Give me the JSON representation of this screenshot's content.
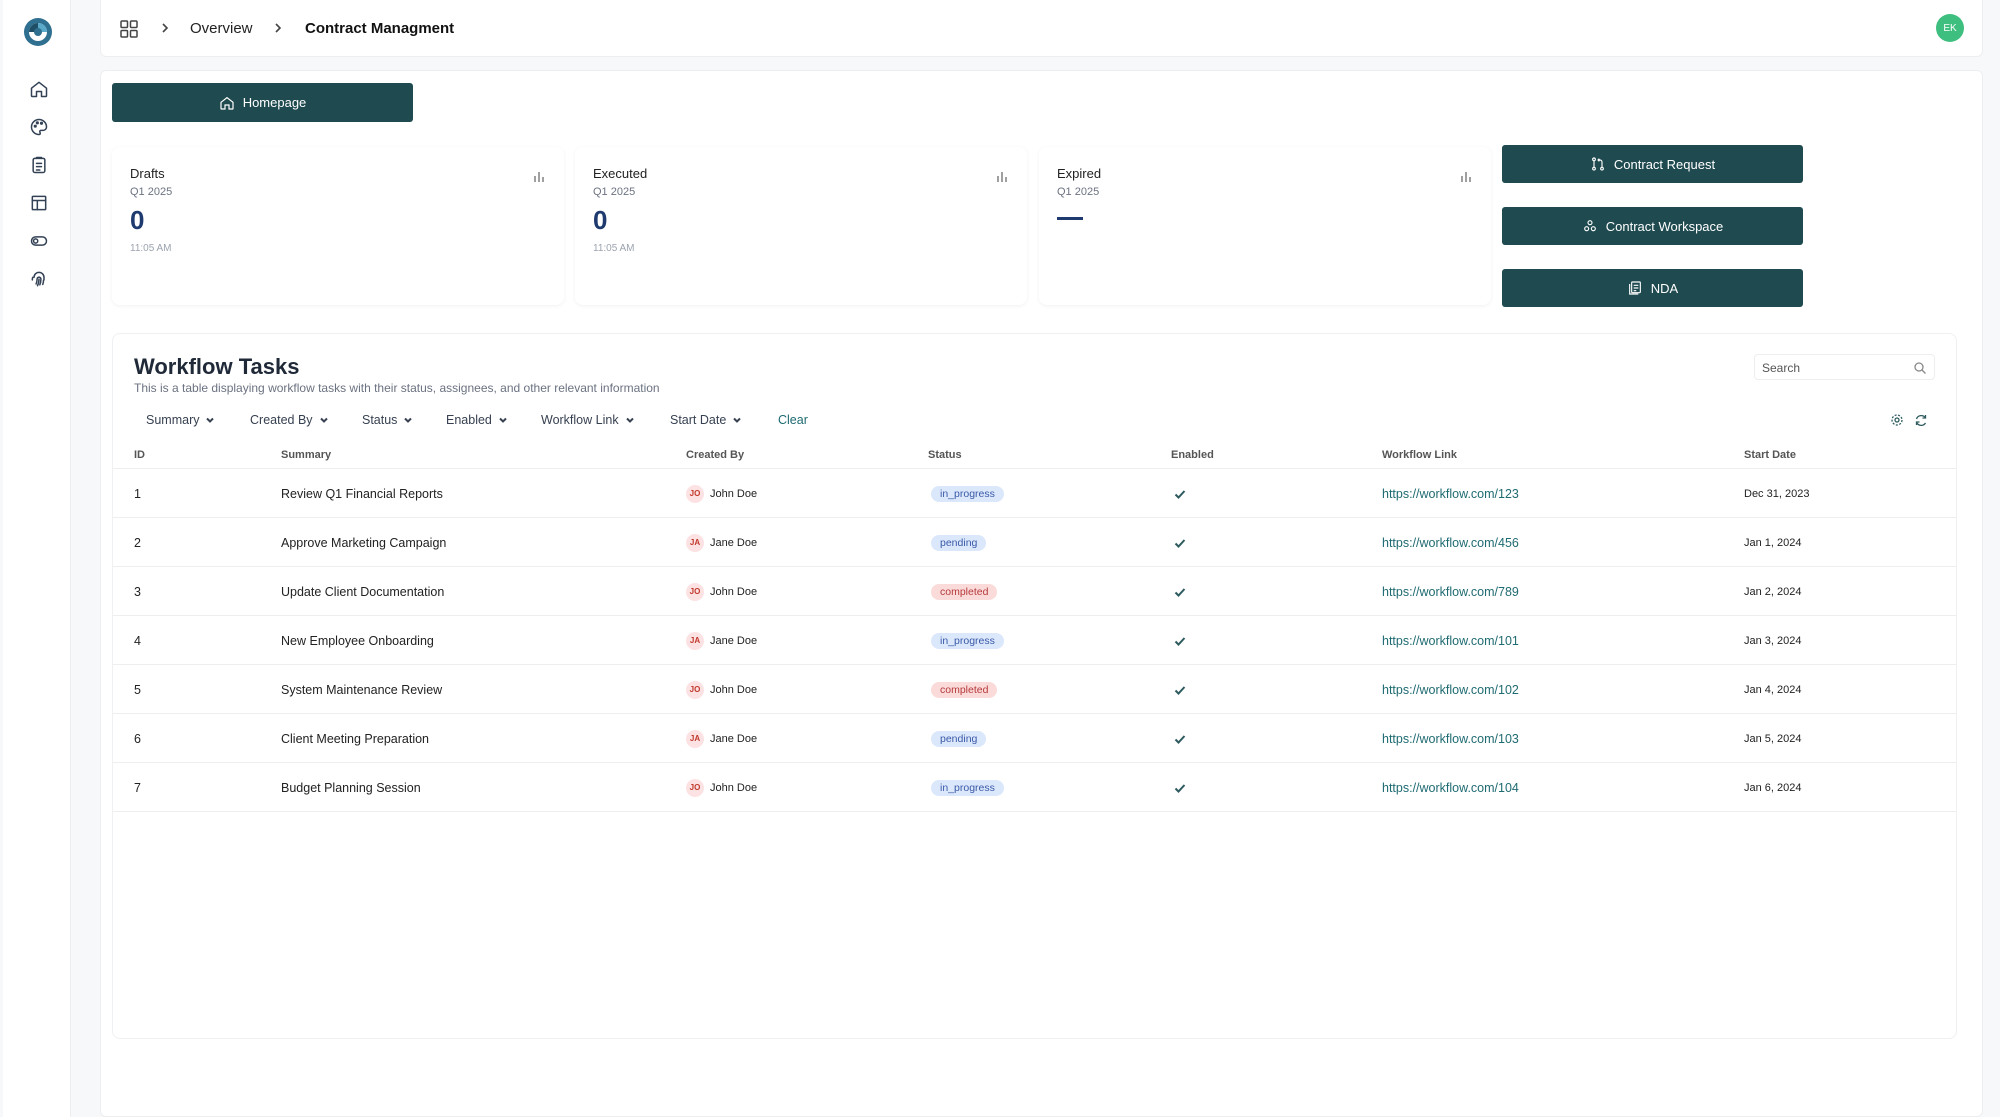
{
  "sidebar": {
    "logo": "app-logo",
    "items": [
      {
        "icon": "home-icon"
      },
      {
        "icon": "palette-icon"
      },
      {
        "icon": "clipboard-icon"
      },
      {
        "icon": "layout-icon"
      },
      {
        "icon": "toggle-icon"
      },
      {
        "icon": "fingerprint-icon"
      }
    ]
  },
  "topbar": {
    "breadcrumb": [
      "Overview",
      "Contract Managment"
    ],
    "avatar_initials": "EK"
  },
  "main": {
    "homepage_label": "Homepage",
    "stats": [
      {
        "title": "Drafts",
        "period": "Q1 2025",
        "value": "0",
        "time": "11:05 AM"
      },
      {
        "title": "Executed",
        "period": "Q1 2025",
        "value": "0",
        "time": "11:05 AM"
      },
      {
        "title": "Expired",
        "period": "Q1 2025",
        "value": "",
        "time": ""
      }
    ],
    "actions": [
      "Contract Request",
      "Contract Workspace",
      "NDA"
    ]
  },
  "table": {
    "title": "Workflow Tasks",
    "subtitle": "This is a table displaying workflow tasks with their status, assignees, and other relevant information",
    "search_placeholder": "Search",
    "filters": [
      "Summary",
      "Created By",
      "Status",
      "Enabled",
      "Workflow Link",
      "Start Date"
    ],
    "clear_label": "Clear",
    "columns": [
      "ID",
      "Summary",
      "Created By",
      "Status",
      "Enabled",
      "Workflow Link",
      "Start Date"
    ],
    "rows": [
      {
        "id": "1",
        "summary": "Review Q1 Financial Reports",
        "initials": "JO",
        "created_by": "John Doe",
        "status": "in_progress",
        "link": "https://workflow.com/123",
        "start": "Dec 31, 2023"
      },
      {
        "id": "2",
        "summary": "Approve Marketing Campaign",
        "initials": "JA",
        "created_by": "Jane Doe",
        "status": "pending",
        "link": "https://workflow.com/456",
        "start": "Jan 1, 2024"
      },
      {
        "id": "3",
        "summary": "Update Client Documentation",
        "initials": "JO",
        "created_by": "John Doe",
        "status": "completed",
        "link": "https://workflow.com/789",
        "start": "Jan 2, 2024"
      },
      {
        "id": "4",
        "summary": "New Employee Onboarding",
        "initials": "JA",
        "created_by": "Jane Doe",
        "status": "in_progress",
        "link": "https://workflow.com/101",
        "start": "Jan 3, 2024"
      },
      {
        "id": "5",
        "summary": "System Maintenance Review",
        "initials": "JO",
        "created_by": "John Doe",
        "status": "completed",
        "link": "https://workflow.com/102",
        "start": "Jan 4, 2024"
      },
      {
        "id": "6",
        "summary": "Client Meeting Preparation",
        "initials": "JA",
        "created_by": "Jane Doe",
        "status": "pending",
        "link": "https://workflow.com/103",
        "start": "Jan 5, 2024"
      },
      {
        "id": "7",
        "summary": "Budget Planning Session",
        "initials": "JO",
        "created_by": "John Doe",
        "status": "in_progress",
        "link": "https://workflow.com/104",
        "start": "Jan 6, 2024"
      }
    ]
  },
  "colors": {
    "primary": "#1f4a4f",
    "accent_link": "#1f6b72",
    "stat_value": "#1e3a6e",
    "avatar_bg": "#3fbf7f"
  }
}
